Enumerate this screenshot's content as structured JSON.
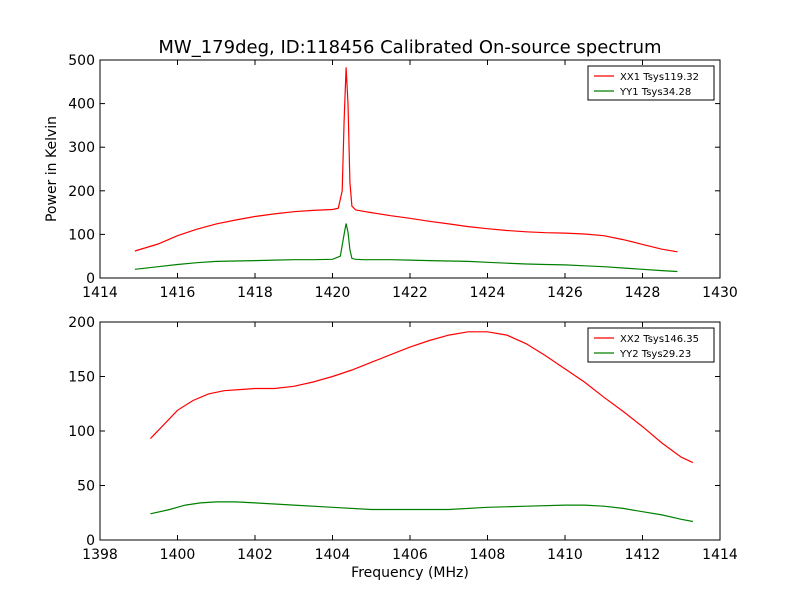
{
  "figure": {
    "title": "MW_179deg, ID:118456 Calibrated On-source spectrum",
    "xlabel": "Frequency (MHz)"
  },
  "chart_data": [
    {
      "type": "line",
      "title": "MW_179deg, ID:118456 Calibrated On-source spectrum",
      "xlabel": "",
      "ylabel": "Power in Kelvin",
      "xlim": [
        1414,
        1430
      ],
      "ylim": [
        0,
        500
      ],
      "xticks": [
        1414,
        1416,
        1418,
        1420,
        1422,
        1424,
        1426,
        1428,
        1430
      ],
      "yticks": [
        0,
        100,
        200,
        300,
        400,
        500
      ],
      "grid": false,
      "legend": "top-right",
      "series": [
        {
          "name": "XX1 Tsys119.32",
          "color": "#ff0000",
          "x": [
            1414.9,
            1415.5,
            1416.0,
            1416.5,
            1417.0,
            1417.5,
            1418.0,
            1418.5,
            1419.0,
            1419.5,
            1420.0,
            1420.15,
            1420.25,
            1420.3,
            1420.35,
            1420.4,
            1420.45,
            1420.5,
            1420.6,
            1420.8,
            1421.0,
            1421.5,
            1422.0,
            1422.5,
            1423.0,
            1423.5,
            1424.0,
            1424.5,
            1425.0,
            1425.5,
            1426.0,
            1426.5,
            1427.0,
            1427.5,
            1428.0,
            1428.5,
            1428.9
          ],
          "values": [
            62,
            78,
            97,
            112,
            124,
            133,
            141,
            147,
            152,
            155,
            157,
            160,
            200,
            360,
            483,
            400,
            220,
            165,
            156,
            153,
            150,
            143,
            137,
            130,
            124,
            118,
            113,
            109,
            106,
            104,
            103,
            101,
            97,
            88,
            77,
            66,
            60
          ]
        },
        {
          "name": "YY1 Tsys34.28",
          "color": "#008000",
          "x": [
            1414.9,
            1415.5,
            1416.0,
            1416.5,
            1417.0,
            1417.5,
            1418.0,
            1418.5,
            1419.0,
            1419.5,
            1420.0,
            1420.2,
            1420.3,
            1420.35,
            1420.4,
            1420.45,
            1420.5,
            1420.6,
            1420.8,
            1421.0,
            1421.5,
            1422.0,
            1422.5,
            1423.0,
            1423.5,
            1424.0,
            1424.5,
            1425.0,
            1425.5,
            1426.0,
            1426.5,
            1427.0,
            1427.5,
            1428.0,
            1428.5,
            1428.9
          ],
          "values": [
            20,
            26,
            31,
            35,
            38,
            39,
            40,
            41,
            42,
            42,
            43,
            50,
            100,
            125,
            105,
            65,
            45,
            43,
            42,
            42,
            42,
            41,
            40,
            39,
            38,
            36,
            34,
            32,
            31,
            30,
            28,
            26,
            23,
            20,
            17,
            15
          ]
        }
      ]
    },
    {
      "type": "line",
      "title": "",
      "xlabel": "Frequency (MHz)",
      "ylabel": "",
      "xlim": [
        1398,
        1414
      ],
      "ylim": [
        0,
        200
      ],
      "xticks": [
        1398,
        1400,
        1402,
        1404,
        1406,
        1408,
        1410,
        1412,
        1414
      ],
      "yticks": [
        0,
        50,
        100,
        150,
        200
      ],
      "grid": false,
      "legend": "top-right",
      "series": [
        {
          "name": "XX2 Tsys146.35",
          "color": "#ff0000",
          "x": [
            1399.3,
            1399.6,
            1400.0,
            1400.4,
            1400.8,
            1401.2,
            1401.6,
            1402.0,
            1402.5,
            1403.0,
            1403.5,
            1404.0,
            1404.5,
            1405.0,
            1405.5,
            1406.0,
            1406.5,
            1407.0,
            1407.5,
            1408.0,
            1408.5,
            1409.0,
            1409.5,
            1410.0,
            1410.5,
            1411.0,
            1411.5,
            1412.0,
            1412.5,
            1413.0,
            1413.3
          ],
          "values": [
            93,
            104,
            119,
            128,
            134,
            137,
            138,
            139,
            139,
            141,
            145,
            150,
            156,
            163,
            170,
            177,
            183,
            188,
            191,
            191,
            188,
            180,
            169,
            157,
            145,
            131,
            118,
            104,
            89,
            76,
            71
          ]
        },
        {
          "name": "YY2 Tsys29.23",
          "color": "#008000",
          "x": [
            1399.3,
            1399.8,
            1400.2,
            1400.6,
            1401.0,
            1401.5,
            1402.0,
            1403.0,
            1404.0,
            1405.0,
            1406.0,
            1407.0,
            1408.0,
            1409.0,
            1410.0,
            1410.5,
            1411.0,
            1411.5,
            1412.0,
            1412.5,
            1413.0,
            1413.3
          ],
          "values": [
            24,
            28,
            32,
            34,
            35,
            35,
            34,
            32,
            30,
            28,
            28,
            28,
            30,
            31,
            32,
            32,
            31,
            29,
            26,
            23,
            19,
            17
          ]
        }
      ]
    }
  ]
}
